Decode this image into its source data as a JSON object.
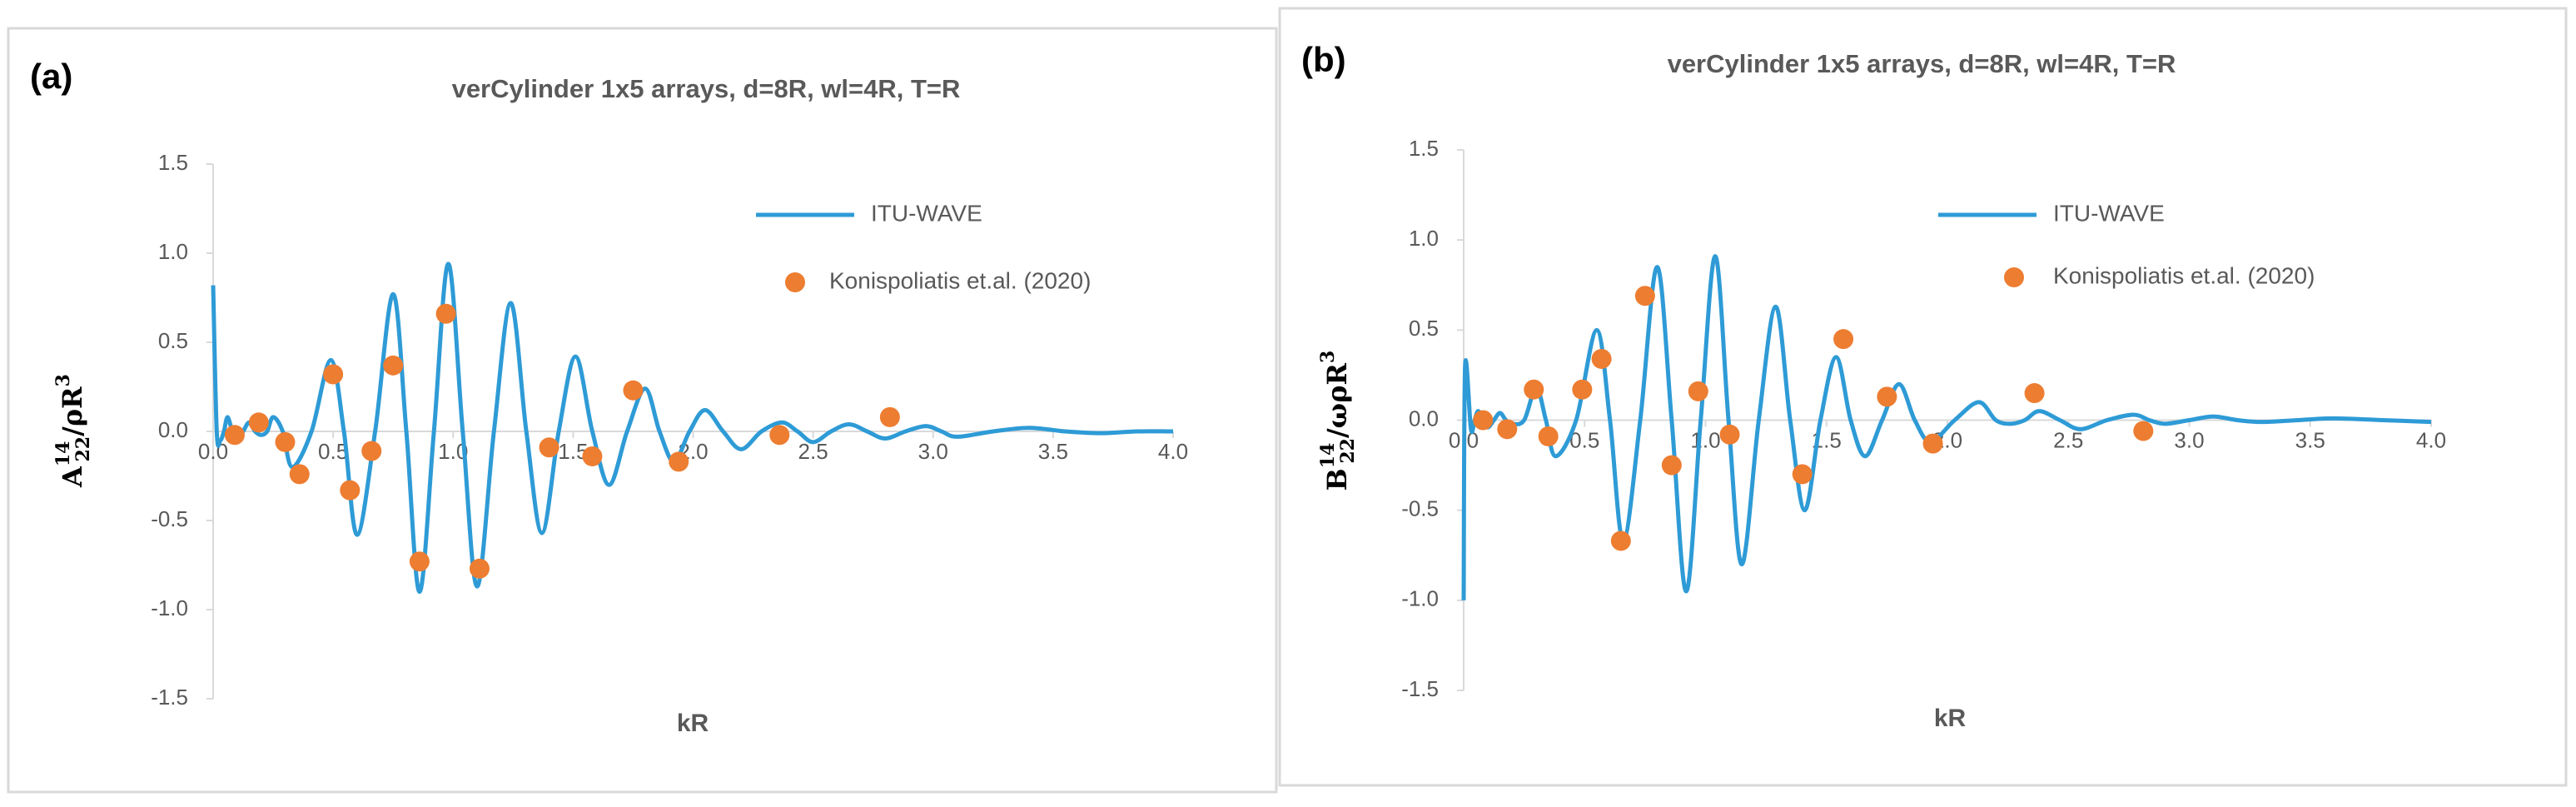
{
  "chart_data": [
    {
      "type": "line",
      "panel_label": "(a)",
      "title": "verCylinder 1x5 arrays, d=8R, wl=4R, T=R",
      "xlabel": "kR",
      "ylabel": {
        "base": "A",
        "sup": "14",
        "sub": "22",
        "rest": "/ρR",
        "rest_sup": "3"
      },
      "xlim": [
        0,
        4
      ],
      "xticks": [
        {
          "value": 0,
          "label": "0.0"
        },
        0.5,
        {
          "value": 1,
          "label": "1.0"
        },
        1.5,
        {
          "value": 2,
          "label": "2.0"
        },
        2.5,
        {
          "value": 3,
          "label": "3.0"
        },
        3.5,
        {
          "value": 4,
          "label": "4.0"
        }
      ],
      "ylim": [
        -1.5,
        1.5
      ],
      "yticks": [
        -1.5,
        {
          "value": -1,
          "label": "-1.0"
        },
        -0.5,
        {
          "value": 0,
          "label": "0.0"
        },
        0.5,
        {
          "value": 1,
          "label": "1.0"
        },
        1.5
      ],
      "series": [
        {
          "name": "ITU-WAVE",
          "color": "#2e9bd6",
          "style": "line",
          "x": [
            0,
            0.015,
            0.03,
            0.045,
            0.06,
            0.08,
            0.1,
            0.125,
            0.15,
            0.175,
            0.2,
            0.225,
            0.25,
            0.29,
            0.33,
            0.41,
            0.49,
            0.545,
            0.6,
            0.675,
            0.75,
            0.805,
            0.86,
            0.92,
            0.98,
            1.04,
            1.1,
            1.17,
            1.24,
            1.305,
            1.37,
            1.44,
            1.51,
            1.58,
            1.65,
            1.725,
            1.8,
            1.86,
            1.92,
            1.985,
            2.05,
            2.125,
            2.2,
            2.285,
            2.37,
            2.435,
            2.5,
            2.575,
            2.65,
            2.725,
            2.8,
            2.885,
            2.97,
            3.035,
            3.1,
            3.25,
            3.4,
            3.55,
            3.7,
            3.85,
            4
          ],
          "values": [
            0.82,
            0,
            -0.05,
            0,
            0.08,
            0,
            -0.05,
            0,
            0.05,
            0,
            -0.02,
            0,
            0.08,
            0,
            -0.2,
            0,
            0.4,
            0,
            -0.58,
            0,
            0.77,
            0,
            -0.9,
            0,
            0.94,
            0,
            -0.87,
            0,
            0.72,
            0,
            -0.57,
            0,
            0.42,
            0,
            -0.3,
            0,
            0.24,
            0,
            -0.17,
            0,
            0.12,
            0,
            -0.1,
            0,
            0.05,
            0,
            -0.06,
            0,
            0.04,
            0,
            -0.04,
            0,
            0.03,
            0,
            -0.03,
            0,
            0.02,
            0,
            -0.01,
            0,
            0
          ]
        },
        {
          "name": "Konispoliatis et.al. (2020)",
          "color": "#ed7d31",
          "style": "markers",
          "x": [
            0.09,
            0.19,
            0.3,
            0.36,
            0.5,
            0.57,
            0.66,
            0.75,
            0.86,
            0.97,
            1.11,
            1.4,
            1.58,
            1.75,
            1.94,
            2.36,
            2.82
          ],
          "values": [
            -0.02,
            0.05,
            -0.06,
            -0.24,
            0.32,
            -0.33,
            -0.11,
            0.37,
            -0.73,
            0.66,
            -0.77,
            -0.09,
            -0.14,
            0.23,
            -0.17,
            -0.02,
            0.08
          ]
        }
      ]
    },
    {
      "type": "line",
      "panel_label": "(b)",
      "title": "verCylinder 1x5 arrays, d=8R, wl=4R, T=R",
      "xlabel": "kR",
      "ylabel": {
        "base": "B",
        "sup": "14",
        "sub": "22",
        "rest": "/ωρR",
        "rest_sup": "3"
      },
      "xlim": [
        0,
        4
      ],
      "xticks": [
        {
          "value": 0,
          "label": "0.0"
        },
        0.5,
        {
          "value": 1,
          "label": "1.0"
        },
        1.5,
        {
          "value": 2,
          "label": "2.0"
        },
        2.5,
        {
          "value": 3,
          "label": "3.0"
        },
        3.5,
        {
          "value": 4,
          "label": "4.0"
        }
      ],
      "ylim": [
        -1.5,
        1.5
      ],
      "yticks": [
        -1.5,
        {
          "value": -1,
          "label": "-1.0"
        },
        -0.5,
        {
          "value": 0,
          "label": "0.0"
        },
        0.5,
        {
          "value": 1,
          "label": "1.0"
        },
        1.5
      ],
      "series": [
        {
          "name": "ITU-WAVE",
          "color": "#2e9bd6",
          "style": "line",
          "x": [
            0,
            0.006,
            0.03,
            0.045,
            0.06,
            0.08,
            0.1,
            0.125,
            0.15,
            0.175,
            0.2,
            0.25,
            0.3,
            0.34,
            0.38,
            0.465,
            0.55,
            0.605,
            0.66,
            0.73,
            0.8,
            0.86,
            0.92,
            0.98,
            1.04,
            1.095,
            1.15,
            1.22,
            1.29,
            1.35,
            1.41,
            1.475,
            1.54,
            1.6,
            1.66,
            1.73,
            1.8,
            1.865,
            1.93,
            2.03,
            2.13,
            2.2,
            2.26,
            2.32,
            2.38,
            2.465,
            2.55,
            2.66,
            2.77,
            2.835,
            2.9,
            3.0,
            3.1,
            3.2,
            3.3,
            3.45,
            3.6,
            3.8,
            4
          ],
          "values": [
            -1.0,
            0.3,
            -0.05,
            0,
            0.05,
            0,
            -0.04,
            0,
            0.04,
            0,
            -0.02,
            0,
            0.18,
            0,
            -0.2,
            0,
            0.5,
            0,
            -0.67,
            0,
            0.85,
            0,
            -0.95,
            0,
            0.91,
            0,
            -0.8,
            0,
            0.63,
            0,
            -0.5,
            0,
            0.35,
            0,
            -0.2,
            0,
            0.2,
            0,
            -0.12,
            0,
            0.1,
            0,
            -0.02,
            0,
            0.05,
            0,
            -0.05,
            0,
            0.03,
            0,
            -0.02,
            0,
            0.02,
            0,
            -0.01,
            0,
            0.01,
            0,
            -0.01
          ]
        },
        {
          "name": "Konispoliatis et.al. (2020)",
          "color": "#ed7d31",
          "style": "markers",
          "x": [
            0.08,
            0.18,
            0.29,
            0.35,
            0.49,
            0.57,
            0.65,
            0.75,
            0.86,
            0.97,
            1.1,
            1.4,
            1.57,
            1.75,
            1.94,
            2.36,
            2.81
          ],
          "values": [
            0,
            -0.05,
            0.17,
            -0.09,
            0.17,
            0.34,
            -0.67,
            0.69,
            -0.25,
            0.16,
            -0.08,
            -0.3,
            0.45,
            0.13,
            -0.13,
            0.15,
            -0.06
          ]
        }
      ]
    }
  ]
}
